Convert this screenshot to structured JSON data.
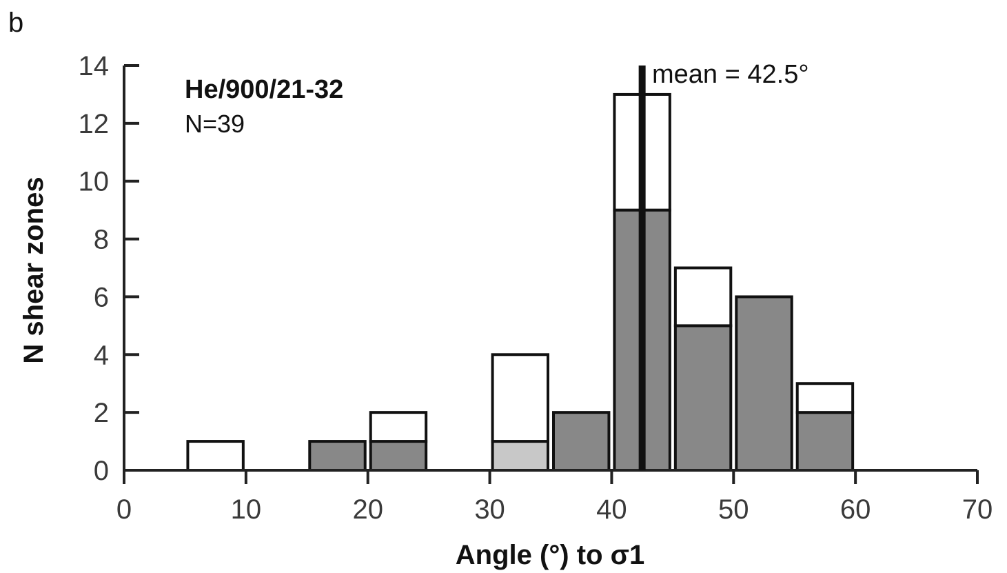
{
  "panel_label": "b",
  "chart_data": {
    "type": "bar",
    "stacked": true,
    "bin_width": 10,
    "bin_starts": [
      5,
      15,
      20,
      30,
      35,
      40,
      45,
      50,
      55
    ],
    "series": [
      {
        "fill": "#888888",
        "values": [
          0,
          1,
          1,
          0,
          2,
          9,
          5,
          6,
          2
        ]
      },
      {
        "fill": "#c8c8c8",
        "values": [
          0,
          0,
          0,
          1,
          0,
          0,
          0,
          0,
          0
        ]
      },
      {
        "fill": "#ffffff",
        "values": [
          1,
          0,
          1,
          3,
          0,
          4,
          2,
          0,
          1
        ]
      }
    ],
    "xlabel": "Angle (°) to σ1",
    "ylabel": "N shear zones",
    "xlim": [
      0,
      70
    ],
    "ylim": [
      0,
      14
    ],
    "x_ticks": [
      "0",
      "10",
      "20",
      "30",
      "40",
      "50",
      "60",
      "70"
    ],
    "y_ticks": [
      "0",
      "2",
      "4",
      "6",
      "8",
      "10",
      "12",
      "14"
    ],
    "sample_label": "He/900/21-32",
    "n_label": "N=39",
    "mean_value": 42.5,
    "mean_label": "mean = 42.5°",
    "grid": false,
    "edge_color": "#111111"
  }
}
